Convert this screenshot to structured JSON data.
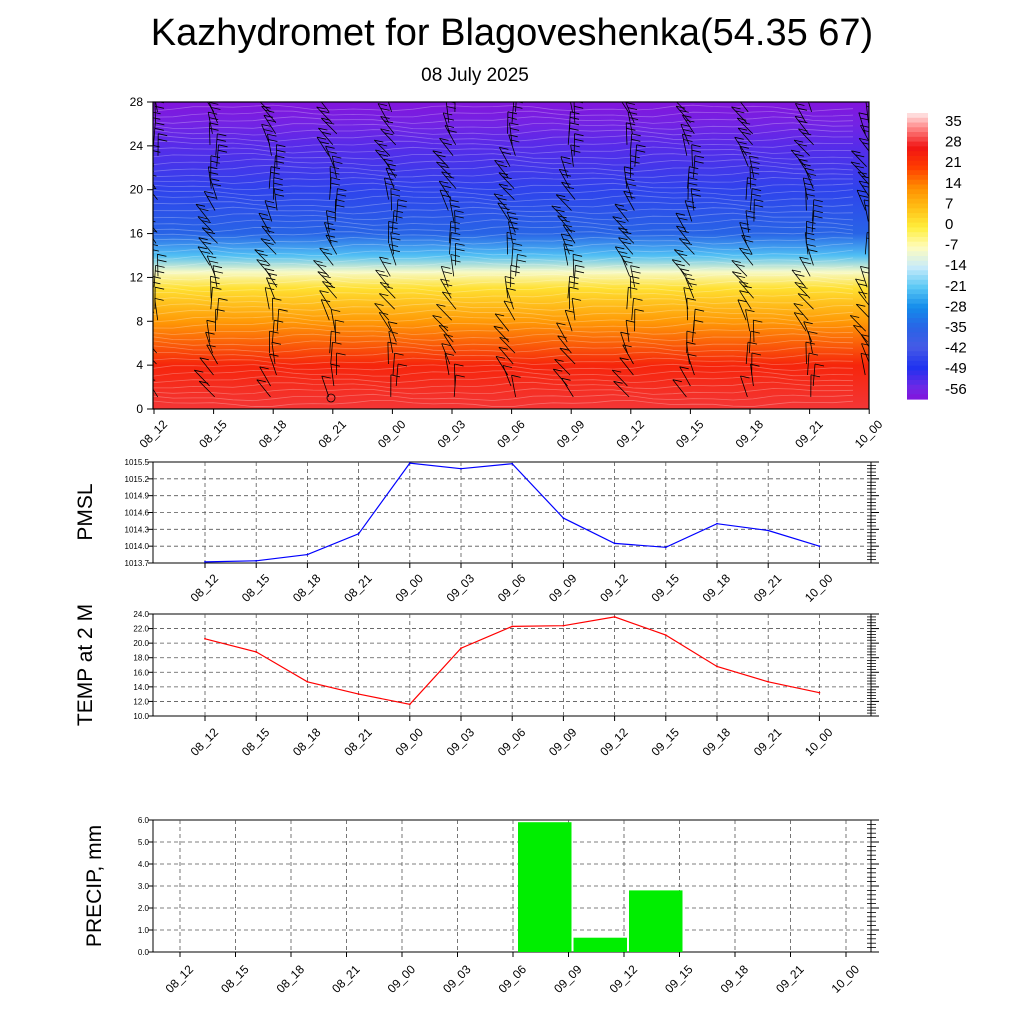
{
  "title": "Kazhydromet for Blagoveshenka(54.35 67)",
  "subtitle": "08 July 2025",
  "time_labels": [
    "08_12",
    "08_15",
    "08_18",
    "08_21",
    "09_00",
    "09_03",
    "09_06",
    "09_09",
    "09_12",
    "09_15",
    "09_18",
    "09_21",
    "10_00"
  ],
  "colors": {
    "pmsl_line": "#0000ff",
    "temp_line": "#ff0000",
    "precip_bar": "#00ee00",
    "grid": "#555555"
  },
  "chart_data": [
    {
      "type": "heatmap",
      "name": "temperature-cross-section",
      "ylim": [
        0,
        28
      ],
      "yticks": [
        0,
        4,
        8,
        12,
        16,
        20,
        24,
        28
      ],
      "x_categories": [
        "08_12",
        "08_15",
        "08_18",
        "08_21",
        "09_00",
        "09_03",
        "09_06",
        "09_09",
        "09_12",
        "09_15",
        "09_18",
        "09_21",
        "10_00"
      ],
      "colorbar_labels": [
        "35",
        "28",
        "21",
        "14",
        "7",
        "0",
        "-7",
        "-14",
        "-21",
        "-28",
        "-35",
        "-42",
        "-49",
        "-56"
      ],
      "colorbar_range": [
        -60,
        40
      ],
      "level_temps": [
        [
          0,
          30
        ],
        [
          4,
          25
        ],
        [
          8,
          12
        ],
        [
          11,
          2
        ],
        [
          12.5,
          -8
        ],
        [
          14,
          -22
        ],
        [
          16,
          -35
        ],
        [
          20,
          -46
        ],
        [
          24,
          -54
        ],
        [
          26,
          -57
        ],
        [
          28,
          -60
        ]
      ]
    },
    {
      "type": "line",
      "name": "pmsl",
      "ylabel": "PMSL",
      "ylim": [
        1013.7,
        1015.5
      ],
      "yticks": [
        "1013.7",
        "1014.0",
        "1014.3",
        "1014.6",
        "1014.9",
        "1015.2",
        "1015.5"
      ],
      "categories": [
        "08_12",
        "08_15",
        "08_18",
        "08_21",
        "09_00",
        "09_03",
        "09_06",
        "09_09",
        "09_12",
        "09_15",
        "09_18",
        "09_21",
        "10_00"
      ],
      "values": [
        1013.72,
        1013.74,
        1013.85,
        1014.22,
        1015.48,
        1015.38,
        1015.47,
        1014.5,
        1014.05,
        1013.98,
        1014.4,
        1014.28,
        1014.0
      ]
    },
    {
      "type": "line",
      "name": "temp-2m",
      "ylabel": "TEMP at 2 M",
      "ylim": [
        10.0,
        24.0
      ],
      "yticks": [
        "10.0",
        "12.0",
        "14.0",
        "16.0",
        "18.0",
        "20.0",
        "22.0",
        "24.0"
      ],
      "categories": [
        "08_12",
        "08_15",
        "08_18",
        "08_21",
        "09_00",
        "09_03",
        "09_06",
        "09_09",
        "09_12",
        "09_15",
        "09_18",
        "09_21",
        "10_00"
      ],
      "values": [
        20.6,
        18.8,
        14.7,
        13.0,
        11.6,
        19.3,
        22.3,
        22.4,
        23.6,
        21.1,
        16.8,
        14.7,
        13.2
      ]
    },
    {
      "type": "bar",
      "name": "precip",
      "ylabel": "PRECIP, mm",
      "ylim": [
        0.0,
        6.0
      ],
      "yticks": [
        "0.0",
        "1.0",
        "2.0",
        "3.0",
        "4.0",
        "5.0",
        "6.0"
      ],
      "categories": [
        "08_12",
        "08_15",
        "08_18",
        "08_21",
        "09_00",
        "09_03",
        "09_06",
        "09_09",
        "09_12",
        "09_15",
        "09_18",
        "09_21",
        "10_00"
      ],
      "values": [
        0,
        0,
        0,
        0,
        0,
        0,
        0,
        5.9,
        0.65,
        2.8,
        0,
        0,
        0
      ]
    }
  ]
}
